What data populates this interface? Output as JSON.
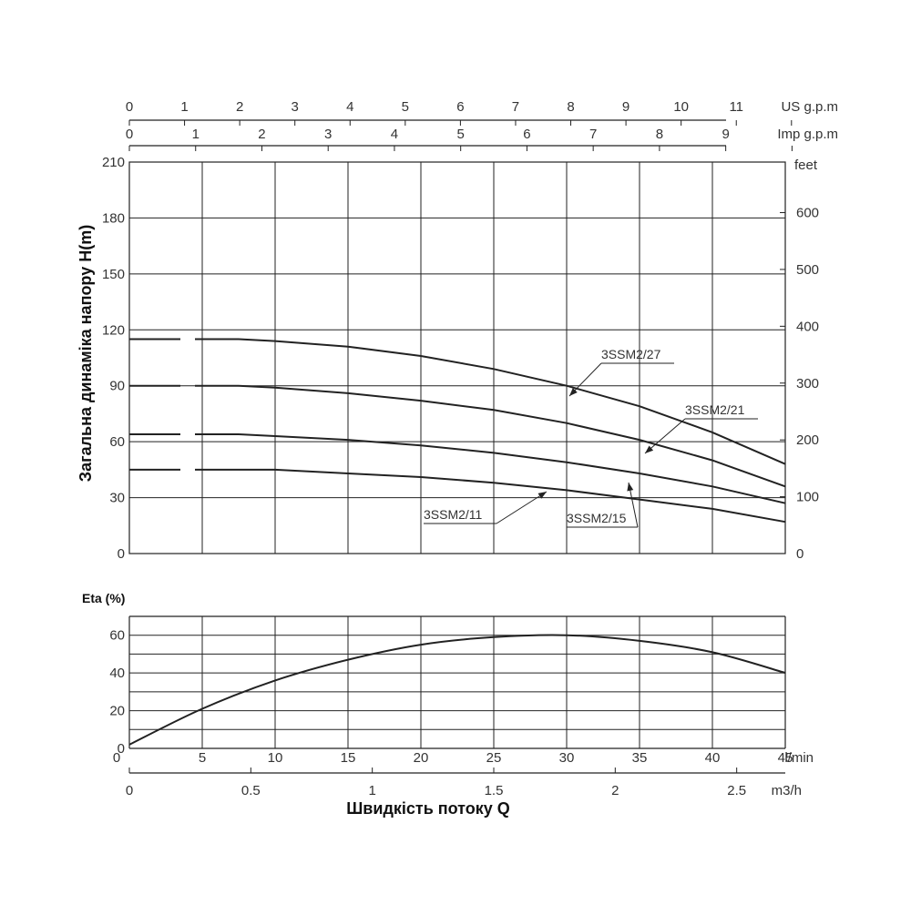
{
  "chart_data": [
    {
      "type": "line",
      "ylabel": "Загальна динаміка напору H(m)",
      "y2label": "feet",
      "x_top1_unit": "US g.p.m",
      "x_top2_unit": "Imp g.p.m",
      "xlim": [
        0,
        45
      ],
      "ylim": [
        0,
        210
      ],
      "y_ticks": [
        0,
        30,
        60,
        90,
        120,
        150,
        180,
        210
      ],
      "y2_ticks": [
        0,
        100,
        200,
        300,
        400,
        500,
        600
      ],
      "x_top1_ticks": [
        0,
        1,
        2,
        3,
        4,
        5,
        6,
        7,
        8,
        9,
        10,
        11
      ],
      "x_top2_ticks": [
        0,
        1,
        2,
        3,
        4,
        5,
        6,
        7,
        8,
        9
      ],
      "grid": true,
      "series": [
        {
          "name": "3SSM2/27",
          "dashed_x": [
            0,
            7.5
          ],
          "x": [
            7.5,
            10,
            15,
            20,
            25,
            30,
            35,
            40,
            45
          ],
          "values": [
            115,
            114,
            111,
            106,
            99,
            90,
            79,
            65,
            48
          ]
        },
        {
          "name": "3SSM2/21",
          "dashed_x": [
            0,
            7.5
          ],
          "x": [
            7.5,
            10,
            15,
            20,
            25,
            30,
            35,
            40,
            45
          ],
          "values": [
            90,
            89,
            86,
            82,
            77,
            70,
            61,
            50,
            36
          ]
        },
        {
          "name": "3SSM2/15",
          "dashed_x": [
            0,
            7.5
          ],
          "x": [
            7.5,
            10,
            15,
            20,
            25,
            30,
            35,
            40,
            45
          ],
          "values": [
            64,
            63,
            61,
            58,
            54,
            49,
            43,
            36,
            27
          ]
        },
        {
          "name": "3SSM2/11",
          "dashed_x": [
            0,
            7.5
          ],
          "x": [
            7.5,
            10,
            15,
            20,
            25,
            30,
            35,
            40,
            45
          ],
          "values": [
            45,
            45,
            43,
            41,
            38,
            34,
            29,
            24,
            17
          ]
        }
      ]
    },
    {
      "type": "line",
      "ylabel": "Eta (%)",
      "xlabel": "Швидкість потоку Q",
      "x_unit": "l/min",
      "x2_unit": "m3/h",
      "xlim": [
        0,
        45
      ],
      "ylim": [
        0,
        70
      ],
      "y_ticks": [
        0,
        20,
        40,
        60
      ],
      "x_ticks": [
        0,
        5,
        10,
        15,
        20,
        25,
        30,
        35,
        40,
        45
      ],
      "x2_ticks": [
        "0",
        "0.5",
        "1",
        "1.5",
        "2",
        "2.5"
      ],
      "grid": true,
      "series": [
        {
          "x": [
            0,
            5,
            10,
            15,
            20,
            25,
            30,
            35,
            40,
            45
          ],
          "values": [
            2,
            21,
            36,
            47,
            55,
            59,
            60,
            57,
            51,
            40
          ]
        }
      ]
    }
  ]
}
